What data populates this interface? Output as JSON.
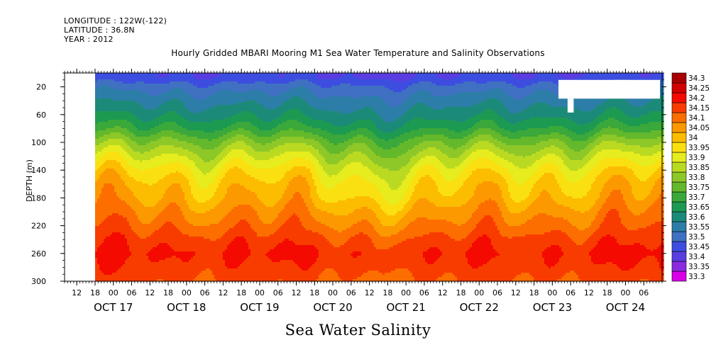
{
  "meta": {
    "longitude": "LONGITUDE : 122W(-122)",
    "latitude": "LATITUDE : 36.8N",
    "year": "YEAR : 2012"
  },
  "chart_data": {
    "type": "heatmap",
    "title": "Hourly Gridded MBARI Mooring M1 Sea Water Temperature and Salinity Observations",
    "xlabel": "Sea Water Salinity",
    "ylabel": "DEPTH (m)",
    "x_range": [
      "2012-10-16T08:00",
      "2012-10-24T12:00"
    ],
    "x_hour_ticks": [
      {
        "t": "2012-10-16T12:00",
        "label": "12"
      },
      {
        "t": "2012-10-16T18:00",
        "label": "18"
      },
      {
        "t": "2012-10-17T00:00",
        "label": "00"
      },
      {
        "t": "2012-10-17T06:00",
        "label": "06"
      },
      {
        "t": "2012-10-17T12:00",
        "label": "12"
      },
      {
        "t": "2012-10-17T18:00",
        "label": "18"
      },
      {
        "t": "2012-10-18T00:00",
        "label": "00"
      },
      {
        "t": "2012-10-18T06:00",
        "label": "06"
      },
      {
        "t": "2012-10-18T12:00",
        "label": "12"
      },
      {
        "t": "2012-10-18T18:00",
        "label": "18"
      },
      {
        "t": "2012-10-19T00:00",
        "label": "00"
      },
      {
        "t": "2012-10-19T06:00",
        "label": "06"
      },
      {
        "t": "2012-10-19T12:00",
        "label": "12"
      },
      {
        "t": "2012-10-19T18:00",
        "label": "18"
      },
      {
        "t": "2012-10-20T00:00",
        "label": "00"
      },
      {
        "t": "2012-10-20T06:00",
        "label": "06"
      },
      {
        "t": "2012-10-20T12:00",
        "label": "12"
      },
      {
        "t": "2012-10-20T18:00",
        "label": "18"
      },
      {
        "t": "2012-10-21T00:00",
        "label": "00"
      },
      {
        "t": "2012-10-21T06:00",
        "label": "06"
      },
      {
        "t": "2012-10-21T12:00",
        "label": "12"
      },
      {
        "t": "2012-10-21T18:00",
        "label": "18"
      },
      {
        "t": "2012-10-22T00:00",
        "label": "00"
      },
      {
        "t": "2012-10-22T06:00",
        "label": "06"
      },
      {
        "t": "2012-10-22T12:00",
        "label": "12"
      },
      {
        "t": "2012-10-22T18:00",
        "label": "18"
      },
      {
        "t": "2012-10-23T00:00",
        "label": "00"
      },
      {
        "t": "2012-10-23T06:00",
        "label": "06"
      },
      {
        "t": "2012-10-23T12:00",
        "label": "12"
      },
      {
        "t": "2012-10-23T18:00",
        "label": "18"
      },
      {
        "t": "2012-10-24T00:00",
        "label": "00"
      },
      {
        "t": "2012-10-24T06:00",
        "label": "06"
      }
    ],
    "x_date_labels": [
      {
        "t": "2012-10-17T00:00",
        "label": "OCT 17"
      },
      {
        "t": "2012-10-18T00:00",
        "label": "OCT 18"
      },
      {
        "t": "2012-10-19T00:00",
        "label": "OCT 19"
      },
      {
        "t": "2012-10-20T00:00",
        "label": "OCT 20"
      },
      {
        "t": "2012-10-21T00:00",
        "label": "OCT 21"
      },
      {
        "t": "2012-10-22T00:00",
        "label": "OCT 22"
      },
      {
        "t": "2012-10-23T00:00",
        "label": "OCT 23"
      },
      {
        "t": "2012-10-24T00:00",
        "label": "OCT 24"
      }
    ],
    "y_range": [
      300,
      0
    ],
    "y_ticks": [
      20,
      60,
      100,
      140,
      180,
      220,
      260,
      300
    ],
    "data_start": "2012-10-16T18:00",
    "missing_blocks": [
      {
        "t0": "2012-10-23T02:00",
        "t1": "2012-10-24T12:00",
        "d0": 10,
        "d1": 37
      },
      {
        "t0": "2012-10-23T05:00",
        "t1": "2012-10-23T07:00",
        "d0": 37,
        "d1": 57
      }
    ],
    "salinity_profile_depths": [
      5,
      20,
      40,
      60,
      80,
      100,
      120,
      140,
      160,
      180,
      200,
      220,
      240,
      260,
      280,
      300
    ],
    "salinity_profile_mean": [
      33.45,
      33.52,
      33.58,
      33.63,
      33.7,
      33.8,
      33.88,
      33.95,
      34.0,
      34.03,
      34.08,
      34.12,
      34.17,
      34.2,
      34.18,
      34.15
    ],
    "colorbar": {
      "levels": [
        33.3,
        33.35,
        33.4,
        33.45,
        33.5,
        33.55,
        33.6,
        33.65,
        33.7,
        33.75,
        33.8,
        33.85,
        33.9,
        33.95,
        34,
        34.05,
        34.1,
        34.15,
        34.2,
        34.25,
        34.3
      ],
      "labels": [
        "33.3",
        "33.35",
        "33.4",
        "33.45",
        "33.5",
        "33.55",
        "33.6",
        "33.65",
        "33.7",
        "33.75",
        "33.8",
        "33.85",
        "33.9",
        "33.95",
        "34",
        "34.05",
        "34.1",
        "34.15",
        "34.2",
        "34.25",
        "34.3"
      ],
      "colors": [
        "#d700e6",
        "#8a2be0",
        "#5a3de0",
        "#3d4de0",
        "#3f70c2",
        "#2c7ea8",
        "#1c8a78",
        "#1d9a52",
        "#3aa83a",
        "#64b82c",
        "#8dc828",
        "#bada22",
        "#e6ec1e",
        "#fae010",
        "#fcbc00",
        "#fc9800",
        "#fc6e00",
        "#f83c00",
        "#f40a00",
        "#d20000",
        "#a80000"
      ]
    }
  }
}
